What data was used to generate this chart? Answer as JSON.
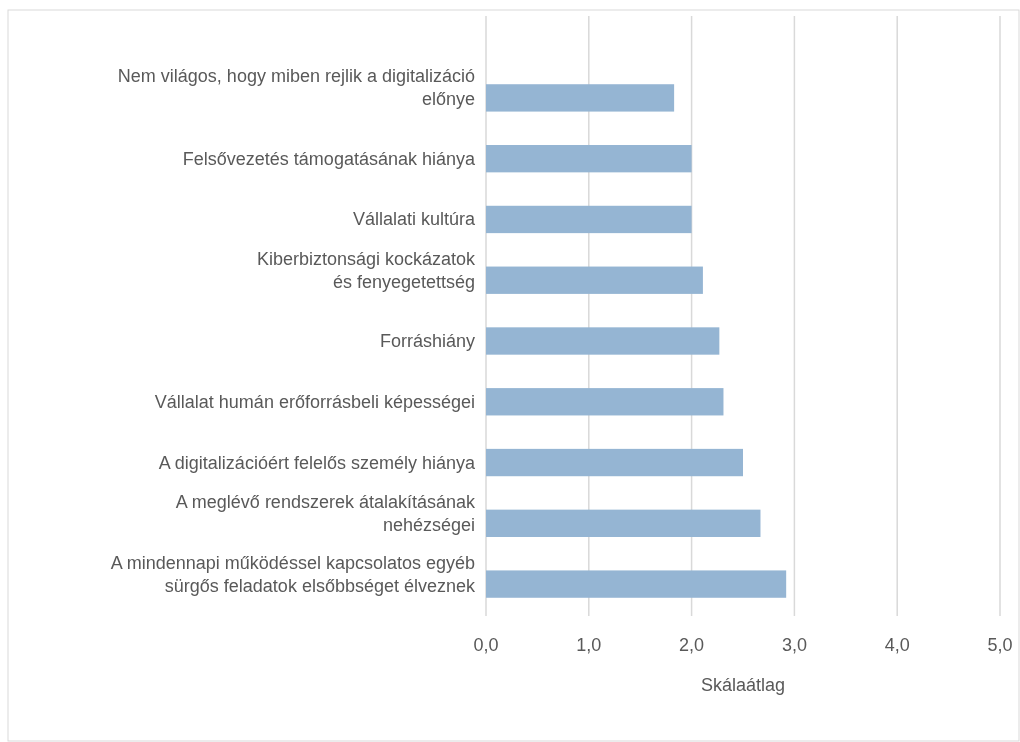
{
  "chart_data": {
    "type": "bar",
    "orientation": "horizontal",
    "xlabel": "Skálaátlag",
    "categories": [
      "Nem világos, hogy miben rejlik a digitalizáció\nelőnye",
      "Felsővezetés támogatásának hiánya",
      "Vállalati kultúra",
      "Kiberbiztonsági kockázatok\nés fenyegetettség",
      "Forráshiány",
      "Vállalat humán erőforrásbeli képességei",
      "A digitalizációért felelős személy hiánya",
      "A meglévő rendszerek átalakításának\nnehézségei",
      "A mindennapi működéssel kapcsolatos egyéb\nsürgős feladatok elsőbbséget élveznek"
    ],
    "values": [
      1.83,
      2.0,
      2.0,
      2.11,
      2.27,
      2.31,
      2.5,
      2.67,
      2.92
    ],
    "color": "#95b5d3",
    "xlim": [
      0,
      5
    ],
    "xticks": [
      {
        "value": 0,
        "label": "0,0"
      },
      {
        "value": 1,
        "label": "1,0"
      },
      {
        "value": 2,
        "label": "2,0"
      },
      {
        "value": 3,
        "label": "3,0"
      },
      {
        "value": 4,
        "label": "4,0"
      },
      {
        "value": 5,
        "label": "5,0"
      }
    ],
    "grid": "x"
  }
}
